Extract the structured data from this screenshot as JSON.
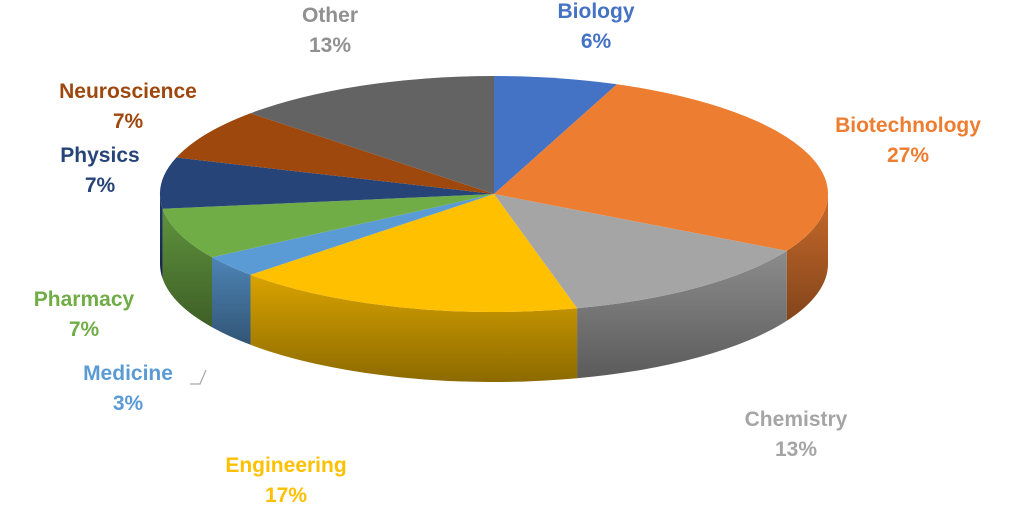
{
  "chart_data": {
    "type": "pie",
    "title": "",
    "slices": [
      {
        "label": "Biology",
        "value": 6,
        "value_label": "6%",
        "color": "#4472C4"
      },
      {
        "label": "Biotechnology",
        "value": 27,
        "value_label": "27%",
        "color": "#ED7D31"
      },
      {
        "label": "Chemistry",
        "value": 13,
        "value_label": "13%",
        "color": "#A5A5A5"
      },
      {
        "label": "Engineering",
        "value": 17,
        "value_label": "17%",
        "color": "#FFC000"
      },
      {
        "label": "Medicine",
        "value": 3,
        "value_label": "3%",
        "color": "#5B9BD5"
      },
      {
        "label": "Pharmacy",
        "value": 7,
        "value_label": "7%",
        "color": "#70AD47"
      },
      {
        "label": "Physics",
        "value": 7,
        "value_label": "7%",
        "color": "#264478"
      },
      {
        "label": "Neuroscience",
        "value": 7,
        "value_label": "7%",
        "color": "#9E480E"
      },
      {
        "label": "Other",
        "value": 13,
        "value_label": "13%",
        "color": "#636363"
      }
    ],
    "start": "12 o'clock, clockwise",
    "style": "3D tilted pie",
    "legend": "none",
    "data_labels": "category name and percentage outside slices"
  }
}
